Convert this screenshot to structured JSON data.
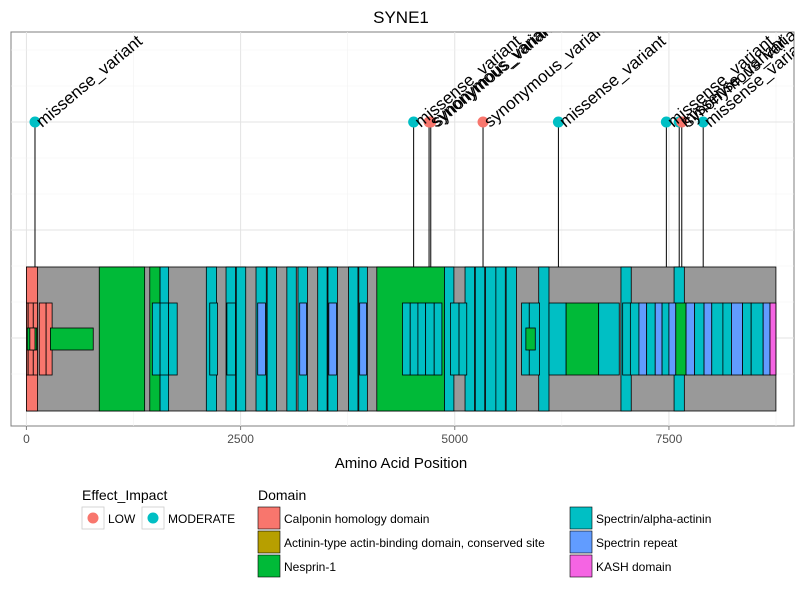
{
  "chart_data": {
    "type": "lollipop",
    "title": "SYNE1",
    "xlabel": "Amino Acid Position",
    "ylabel": "",
    "xlim": [
      -180,
      8960
    ],
    "x_ticks": [
      0,
      2500,
      5000,
      7500
    ],
    "x_tick_labels": [
      "0",
      "2500",
      "5000",
      "7500"
    ],
    "grid": true,
    "protein_length": 8749,
    "legend": {
      "impact_title": "Effect_Impact",
      "impact_items": [
        {
          "label": "LOW",
          "color": "#F8766D"
        },
        {
          "label": "MODERATE",
          "color": "#00BFC4"
        }
      ],
      "domain_title": "Domain",
      "domain_items": [
        {
          "label": "Calponin homology domain",
          "color": "#F8766D"
        },
        {
          "label": "Actinin-type actin-binding domain, conserved site",
          "color": "#B79F00"
        },
        {
          "label": "Nesprin-1",
          "color": "#00BA38"
        },
        {
          "label": "Spectrin/alpha-actinin",
          "color": "#00BFC4"
        },
        {
          "label": "Spectrin repeat",
          "color": "#619CFF"
        },
        {
          "label": "KASH domain",
          "color": "#F564E3"
        }
      ]
    },
    "variants": [
      {
        "pos": 100,
        "impact": "MODERATE",
        "label": "missense_variant"
      },
      {
        "pos": 4520,
        "impact": "MODERATE",
        "label": "missense_variant"
      },
      {
        "pos": 4700,
        "impact": "LOW",
        "label": "synonymous_variant"
      },
      {
        "pos": 4720,
        "impact": "LOW",
        "label": "synonymous_variant"
      },
      {
        "pos": 5330,
        "impact": "LOW",
        "label": "synonymous_variant"
      },
      {
        "pos": 6210,
        "impact": "MODERATE",
        "label": "missense_variant"
      },
      {
        "pos": 7470,
        "impact": "MODERATE",
        "label": "missense_variant"
      },
      {
        "pos": 7620,
        "impact": "MODERATE",
        "label": "missense_variant"
      },
      {
        "pos": 7650,
        "impact": "LOW",
        "label": "synonymous_variant"
      },
      {
        "pos": 7900,
        "impact": "MODERATE",
        "label": "missense_variant"
      }
    ],
    "domains": [
      {
        "start": 0,
        "end": 8749,
        "level": "outer",
        "type": "none"
      },
      {
        "start": 0,
        "end": 130,
        "level": "outer",
        "type": "Calponin homology domain"
      },
      {
        "start": 850,
        "end": 1380,
        "level": "outer",
        "type": "Nesprin-1"
      },
      {
        "start": 1440,
        "end": 1560,
        "level": "outer",
        "type": "Nesprin-1"
      },
      {
        "start": 1560,
        "end": 1660,
        "level": "outer",
        "type": "Spectrin/alpha-actinin"
      },
      {
        "start": 2100,
        "end": 2220,
        "level": "outer",
        "type": "Spectrin/alpha-actinin"
      },
      {
        "start": 2330,
        "end": 2440,
        "level": "outer",
        "type": "Spectrin/alpha-actinin"
      },
      {
        "start": 2450,
        "end": 2560,
        "level": "outer",
        "type": "Spectrin/alpha-actinin"
      },
      {
        "start": 2680,
        "end": 2800,
        "level": "outer",
        "type": "Spectrin/alpha-actinin"
      },
      {
        "start": 2810,
        "end": 2920,
        "level": "outer",
        "type": "Spectrin/alpha-actinin"
      },
      {
        "start": 3040,
        "end": 3150,
        "level": "outer",
        "type": "Spectrin/alpha-actinin"
      },
      {
        "start": 3170,
        "end": 3280,
        "level": "outer",
        "type": "Spectrin/alpha-actinin"
      },
      {
        "start": 3400,
        "end": 3510,
        "level": "outer",
        "type": "Spectrin/alpha-actinin"
      },
      {
        "start": 3520,
        "end": 3630,
        "level": "outer",
        "type": "Spectrin/alpha-actinin"
      },
      {
        "start": 3760,
        "end": 3870,
        "level": "outer",
        "type": "Spectrin/alpha-actinin"
      },
      {
        "start": 3880,
        "end": 3980,
        "level": "outer",
        "type": "Spectrin/alpha-actinin"
      },
      {
        "start": 4090,
        "end": 4880,
        "level": "outer",
        "type": "Nesprin-1"
      },
      {
        "start": 4880,
        "end": 4990,
        "level": "outer",
        "type": "Spectrin/alpha-actinin"
      },
      {
        "start": 5120,
        "end": 5230,
        "level": "outer",
        "type": "Spectrin/alpha-actinin"
      },
      {
        "start": 5240,
        "end": 5350,
        "level": "outer",
        "type": "Spectrin/alpha-actinin"
      },
      {
        "start": 5360,
        "end": 5480,
        "level": "outer",
        "type": "Spectrin/alpha-actinin"
      },
      {
        "start": 5480,
        "end": 5590,
        "level": "outer",
        "type": "Spectrin/alpha-actinin"
      },
      {
        "start": 5600,
        "end": 5720,
        "level": "outer",
        "type": "Spectrin/alpha-actinin"
      },
      {
        "start": 5980,
        "end": 6100,
        "level": "outer",
        "type": "Spectrin/alpha-actinin"
      },
      {
        "start": 6940,
        "end": 7060,
        "level": "outer",
        "type": "Spectrin/alpha-actinin"
      },
      {
        "start": 7560,
        "end": 7680,
        "level": "outer",
        "type": "Spectrin/alpha-actinin"
      },
      {
        "start": 0,
        "end": 20,
        "level": "mid",
        "type": "Calponin homology domain"
      },
      {
        "start": 20,
        "end": 80,
        "level": "mid",
        "type": "Calponin homology domain"
      },
      {
        "start": 80,
        "end": 130,
        "level": "mid",
        "type": "Calponin homology domain"
      },
      {
        "start": 150,
        "end": 230,
        "level": "mid",
        "type": "Calponin homology domain"
      },
      {
        "start": 230,
        "end": 300,
        "level": "mid",
        "type": "Calponin homology domain"
      },
      {
        "start": 1470,
        "end": 1560,
        "level": "mid",
        "type": "Spectrin/alpha-actinin"
      },
      {
        "start": 1560,
        "end": 1660,
        "level": "mid",
        "type": "Spectrin/alpha-actinin"
      },
      {
        "start": 1660,
        "end": 1760,
        "level": "mid",
        "type": "Spectrin/alpha-actinin"
      },
      {
        "start": 4390,
        "end": 4480,
        "level": "mid",
        "type": "Spectrin/alpha-actinin"
      },
      {
        "start": 4480,
        "end": 4570,
        "level": "mid",
        "type": "Spectrin/alpha-actinin"
      },
      {
        "start": 4570,
        "end": 4660,
        "level": "mid",
        "type": "Spectrin/alpha-actinin"
      },
      {
        "start": 4660,
        "end": 4760,
        "level": "mid",
        "type": "Spectrin/alpha-actinin"
      },
      {
        "start": 4760,
        "end": 4850,
        "level": "mid",
        "type": "Spectrin/alpha-actinin"
      },
      {
        "start": 4950,
        "end": 5050,
        "level": "mid",
        "type": "Spectrin/alpha-actinin"
      },
      {
        "start": 5050,
        "end": 5140,
        "level": "mid",
        "type": "Spectrin/alpha-actinin"
      },
      {
        "start": 5780,
        "end": 5870,
        "level": "mid",
        "type": "Spectrin/alpha-actinin"
      },
      {
        "start": 5870,
        "end": 5990,
        "level": "mid",
        "type": "Spectrin/alpha-actinin"
      },
      {
        "start": 6100,
        "end": 6300,
        "level": "mid",
        "type": "Spectrin/alpha-actinin"
      },
      {
        "start": 6300,
        "end": 6680,
        "level": "mid",
        "type": "Nesprin-1"
      },
      {
        "start": 6680,
        "end": 6920,
        "level": "mid",
        "type": "Spectrin/alpha-actinin"
      },
      {
        "start": 6960,
        "end": 7050,
        "level": "mid",
        "type": "Spectrin/alpha-actinin"
      },
      {
        "start": 7050,
        "end": 7150,
        "level": "mid",
        "type": "Spectrin/alpha-actinin"
      },
      {
        "start": 7150,
        "end": 7240,
        "level": "mid",
        "type": "Spectrin repeat"
      },
      {
        "start": 7240,
        "end": 7340,
        "level": "mid",
        "type": "Spectrin/alpha-actinin"
      },
      {
        "start": 7340,
        "end": 7420,
        "level": "mid",
        "type": "Spectrin repeat"
      },
      {
        "start": 7420,
        "end": 7500,
        "level": "mid",
        "type": "Spectrin/alpha-actinin"
      },
      {
        "start": 7500,
        "end": 7580,
        "level": "mid",
        "type": "Spectrin repeat"
      },
      {
        "start": 7580,
        "end": 7700,
        "level": "mid",
        "type": "Nesprin-1"
      },
      {
        "start": 7700,
        "end": 7800,
        "level": "mid",
        "type": "Spectrin repeat"
      },
      {
        "start": 7800,
        "end": 7910,
        "level": "mid",
        "type": "Spectrin/alpha-actinin"
      },
      {
        "start": 7910,
        "end": 8000,
        "level": "mid",
        "type": "Spectrin repeat"
      },
      {
        "start": 8000,
        "end": 8130,
        "level": "mid",
        "type": "Spectrin/alpha-actinin"
      },
      {
        "start": 8130,
        "end": 8230,
        "level": "mid",
        "type": "Spectrin/alpha-actinin"
      },
      {
        "start": 8230,
        "end": 8360,
        "level": "mid",
        "type": "Spectrin repeat"
      },
      {
        "start": 8360,
        "end": 8460,
        "level": "mid",
        "type": "Spectrin/alpha-actinin"
      },
      {
        "start": 8460,
        "end": 8600,
        "level": "mid",
        "type": "Spectrin/alpha-actinin"
      },
      {
        "start": 8600,
        "end": 8680,
        "level": "mid",
        "type": "Spectrin repeat"
      },
      {
        "start": 8680,
        "end": 8749,
        "level": "mid",
        "type": "KASH domain"
      },
      {
        "start": 10,
        "end": 120,
        "level": "inner",
        "type": "Nesprin-1"
      },
      {
        "start": 40,
        "end": 100,
        "level": "inner",
        "type": "Calponin homology domain"
      },
      {
        "start": 280,
        "end": 780,
        "level": "inner",
        "type": "Nesprin-1"
      },
      {
        "start": 5830,
        "end": 5940,
        "level": "inner",
        "type": "Nesprin-1"
      },
      {
        "start": 2140,
        "end": 2230,
        "level": "mid",
        "type": "Spectrin/alpha-actinin"
      },
      {
        "start": 2340,
        "end": 2440,
        "level": "mid",
        "type": "Spectrin/alpha-actinin"
      },
      {
        "start": 2700,
        "end": 2790,
        "level": "mid",
        "type": "Spectrin repeat"
      },
      {
        "start": 3190,
        "end": 3270,
        "level": "mid",
        "type": "Spectrin repeat"
      },
      {
        "start": 3530,
        "end": 3620,
        "level": "mid",
        "type": "Spectrin repeat"
      },
      {
        "start": 3890,
        "end": 3970,
        "level": "mid",
        "type": "Spectrin repeat"
      }
    ]
  }
}
